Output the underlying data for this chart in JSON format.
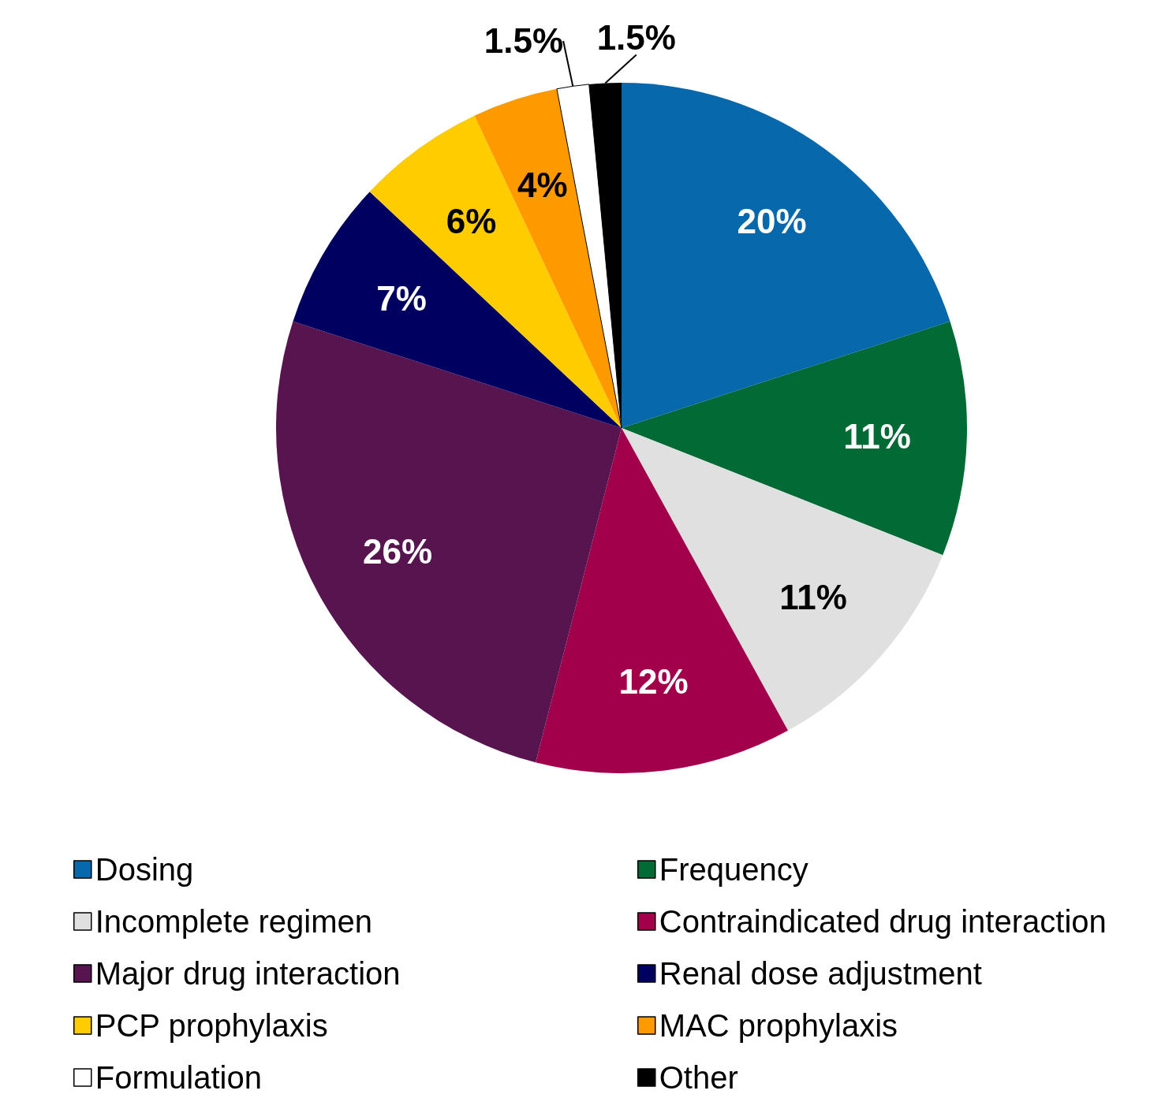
{
  "chart_data": {
    "type": "pie",
    "categories": [
      "Dosing",
      "Frequency",
      "Incomplete regimen",
      "Contraindicated drug interaction",
      "Major drug interaction",
      "Renal dose adjustment",
      "PCP prophylaxis",
      "MAC prophylaxis",
      "Formulation",
      "Other"
    ],
    "values": [
      20,
      11,
      11,
      12,
      26,
      7,
      6,
      4,
      1.5,
      1.5
    ],
    "value_labels": [
      "20%",
      "11%",
      "11%",
      "12%",
      "26%",
      "7%",
      "6%",
      "4%",
      "1.5%",
      "1.5%"
    ],
    "colors": [
      "#0868ac",
      "#026a35",
      "#e0e0e0",
      "#a3004c",
      "#58144f",
      "#000060",
      "#ffcc00",
      "#ff9900",
      "#ffffff",
      "#000000"
    ],
    "legend": "bottom"
  }
}
